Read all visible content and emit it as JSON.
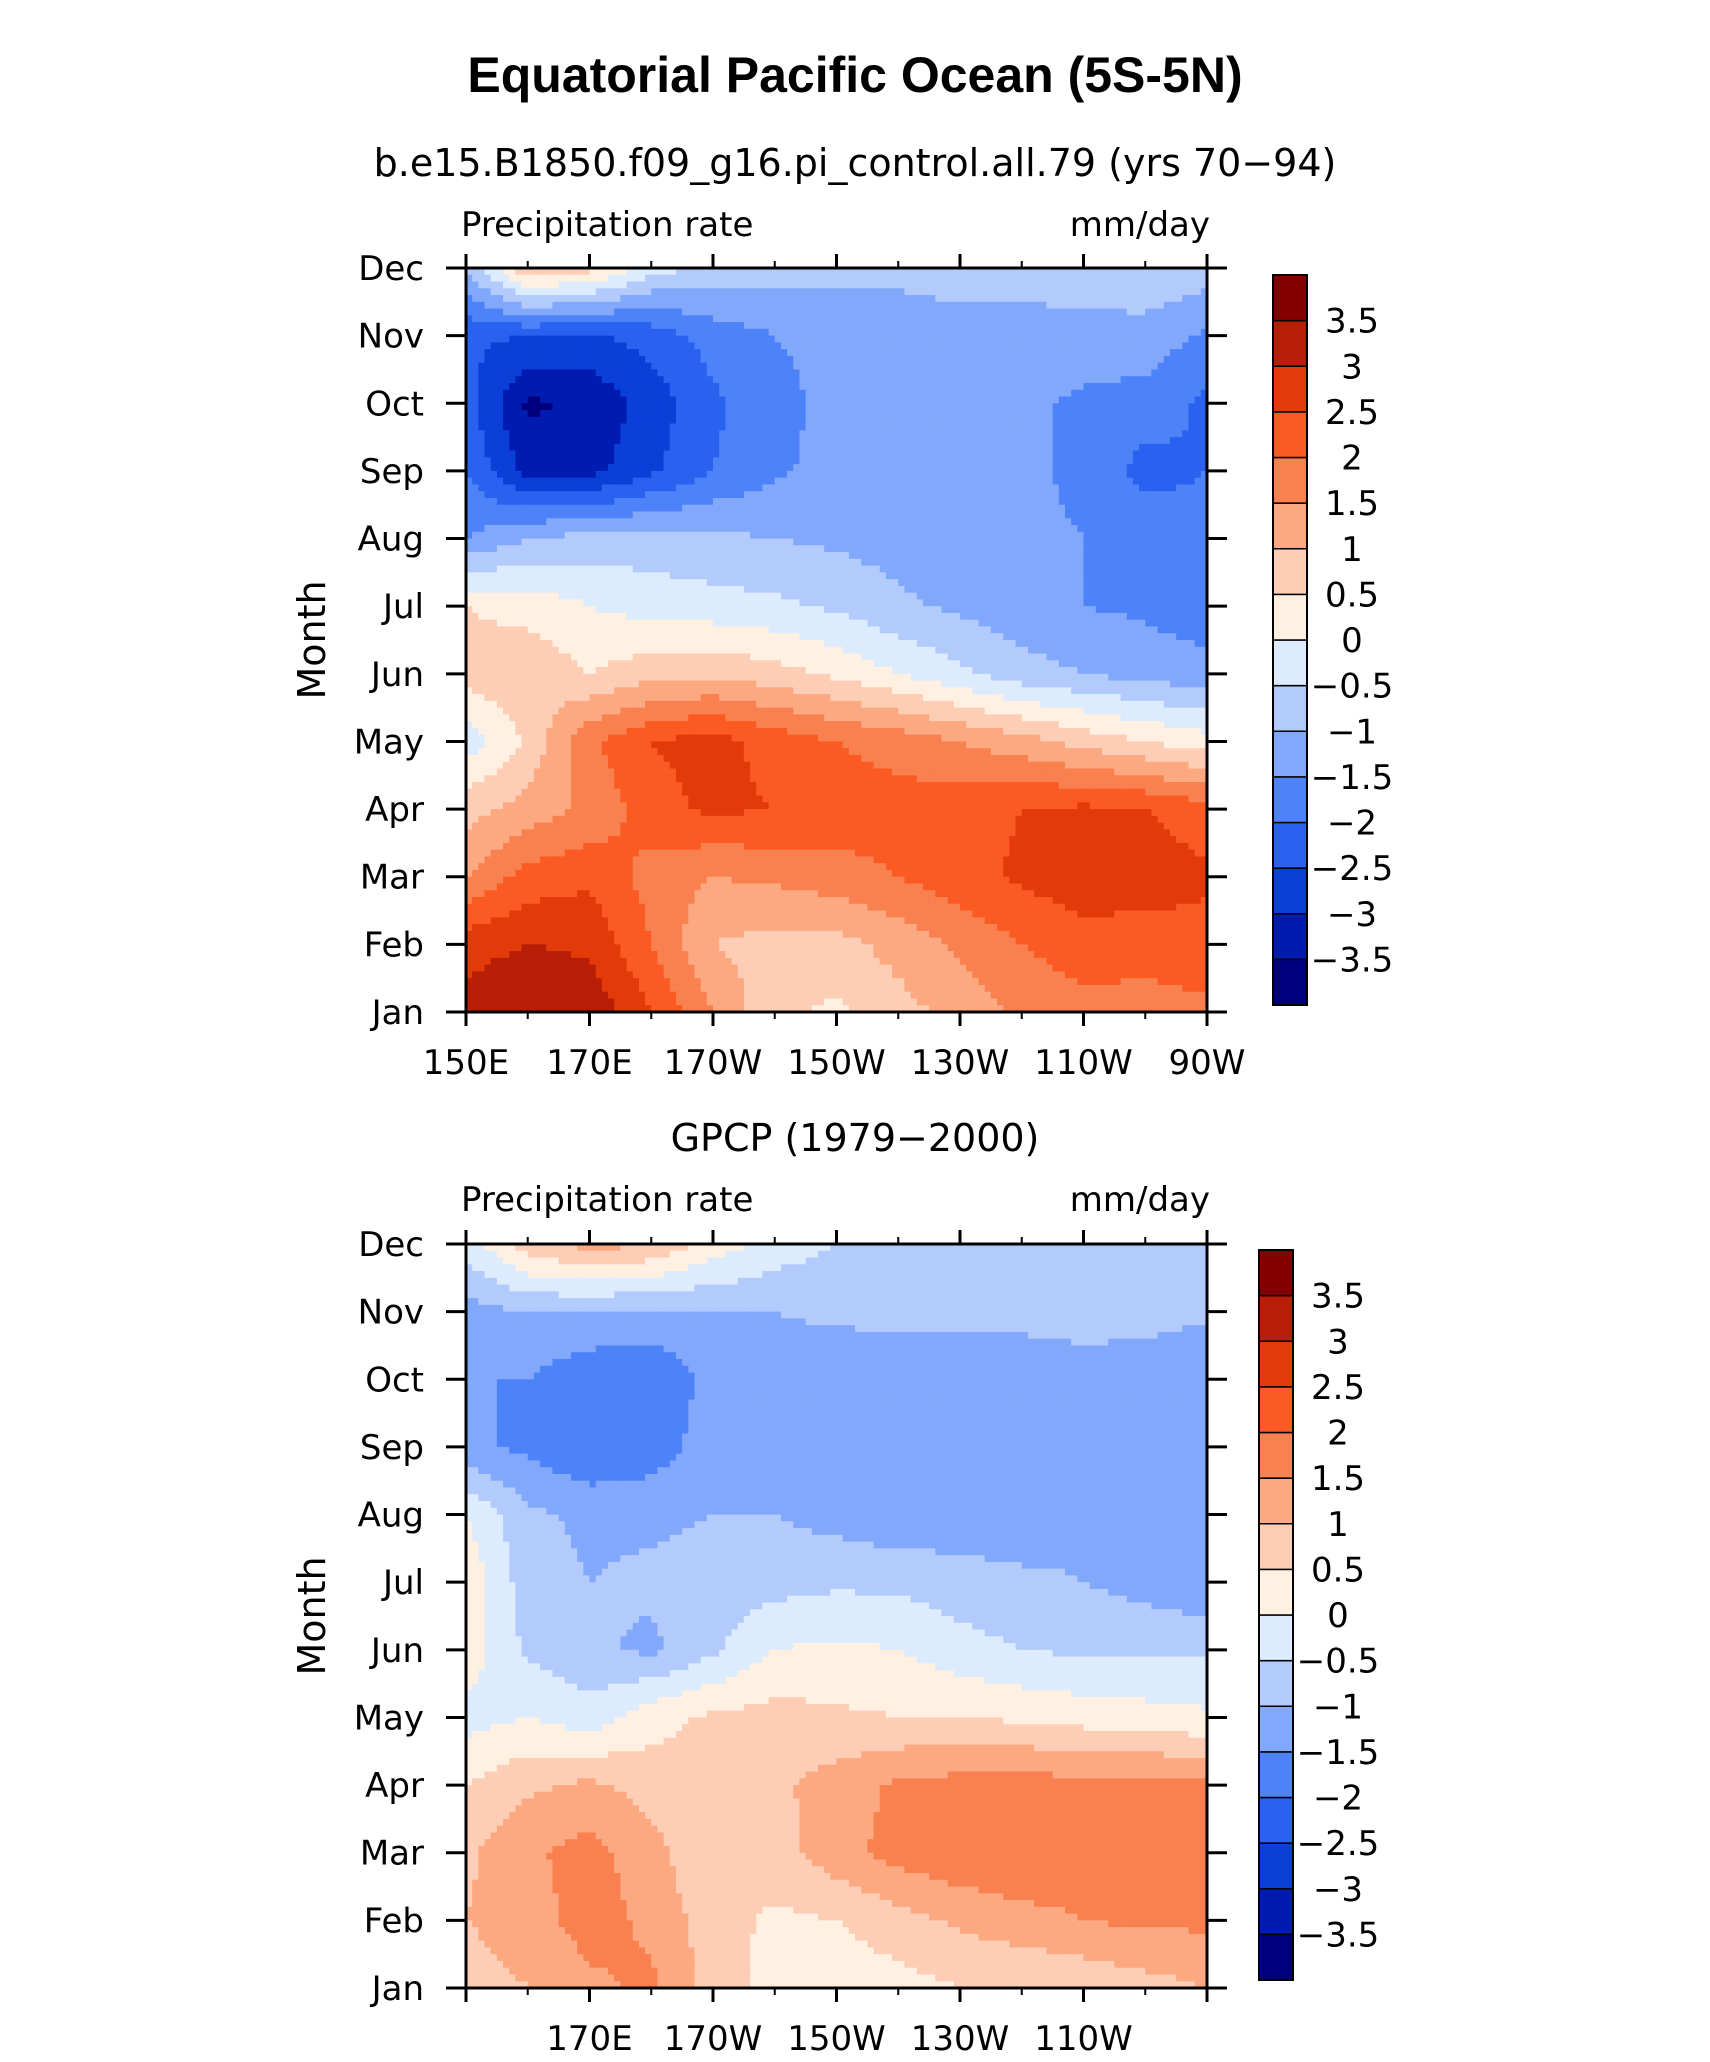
{
  "figure": {
    "title": "Equatorial Pacific Ocean (5S-5N)"
  },
  "colorbar": {
    "colors": [
      "#00007f",
      "#001cb0",
      "#0a3fd8",
      "#2a62f0",
      "#4d82f8",
      "#82a8fb",
      "#b3cbfc",
      "#dcebfd",
      "#fff0e2",
      "#fdcdb5",
      "#fca880",
      "#f9814f",
      "#fb5a22",
      "#e33a0a",
      "#b81e06",
      "#840000"
    ],
    "levels": [
      -3.5,
      -3,
      -2.5,
      -2,
      -1.5,
      -1,
      -0.5,
      0,
      0.5,
      1,
      1.5,
      2,
      2.5,
      3,
      3.5
    ],
    "labels": [
      "−3.5",
      "−3",
      "−2.5",
      "−2",
      "−1.5",
      "−1",
      "−0.5",
      "0",
      "0.5",
      "1",
      "1.5",
      "2",
      "2.5",
      "3",
      "3.5"
    ]
  },
  "panels": [
    {
      "subtitle": "b.e15.B1850.f09_g16.pi_control.all.79 (yrs 70−94)",
      "left_label": "Precipitation rate",
      "right_label": "mm/day",
      "ylabel": "Month",
      "x_tick_labels": [
        "150E",
        "170E",
        "170W",
        "150W",
        "130W",
        "110W",
        "90W"
      ]
    },
    {
      "subtitle": "GPCP (1979−2000)",
      "left_label": "Precipitation rate",
      "right_label": "mm/day",
      "ylabel": "Month",
      "x_tick_labels": [
        "",
        "170E",
        "170W",
        "150W",
        "130W",
        "110W",
        ""
      ]
    }
  ],
  "chart_data": [
    {
      "type": "heatmap",
      "title": "Equatorial Pacific Ocean (5S-5N)",
      "subtitle": "b.e15.B1850.f09_g16.pi_control.all.79 (yrs 70−94)",
      "variable": "Precipitation rate",
      "units": "mm/day",
      "ylabel": "Month",
      "x": [
        150,
        160,
        170,
        180,
        190,
        200,
        210,
        220,
        230,
        240,
        250,
        260,
        270
      ],
      "y": [
        "Jan",
        "Feb",
        "Mar",
        "Apr",
        "May",
        "Jun",
        "Jul",
        "Aug",
        "Sep",
        "Oct",
        "Nov",
        "Dec"
      ],
      "z": [
        [
          3.2,
          3.5,
          3.4,
          2.5,
          1.5,
          0.6,
          0.4,
          0.8,
          1.2,
          1.6,
          1.8,
          1.8,
          1.9
        ],
        [
          2.8,
          3.0,
          2.9,
          2.0,
          1.0,
          0.8,
          0.8,
          1.2,
          1.6,
          2.0,
          2.3,
          2.2,
          2.3
        ],
        [
          1.5,
          2.2,
          2.4,
          1.8,
          1.5,
          1.6,
          1.8,
          2.0,
          2.3,
          2.6,
          2.8,
          2.8,
          2.6
        ],
        [
          0.8,
          1.2,
          1.6,
          2.3,
          2.6,
          2.5,
          2.3,
          2.2,
          2.3,
          2.5,
          2.6,
          2.5,
          2.2
        ],
        [
          -0.3,
          0.6,
          1.9,
          2.5,
          2.7,
          2.3,
          2.0,
          1.8,
          1.5,
          1.2,
          0.8,
          0.5,
          0.2
        ],
        [
          0.7,
          0.9,
          0.5,
          0.8,
          0.9,
          0.7,
          0.4,
          0.0,
          -0.4,
          -0.8,
          -1.0,
          -1.2,
          -1.3
        ],
        [
          0.5,
          0.3,
          0.0,
          -0.2,
          -0.3,
          -0.4,
          -0.6,
          -0.9,
          -1.1,
          -1.3,
          -1.5,
          -1.6,
          -1.8
        ],
        [
          -1.5,
          -1.0,
          -0.8,
          -0.8,
          -0.9,
          -1.0,
          -1.1,
          -1.2,
          -1.3,
          -1.4,
          -1.5,
          -1.6,
          -1.8
        ],
        [
          -2.0,
          -3.2,
          -3.2,
          -2.6,
          -2.0,
          -1.6,
          -1.3,
          -1.2,
          -1.3,
          -1.4,
          -1.6,
          -2.2,
          -2.0
        ],
        [
          -2.3,
          -3.6,
          -3.4,
          -2.8,
          -2.1,
          -1.7,
          -1.3,
          -1.2,
          -1.3,
          -1.4,
          -1.6,
          -1.7,
          -2.1
        ],
        [
          -2.4,
          -2.5,
          -2.6,
          -2.3,
          -1.8,
          -1.5,
          -1.3,
          -1.2,
          -1.2,
          -1.2,
          -1.2,
          -1.2,
          -1.6
        ],
        [
          -1.0,
          1.0,
          0.7,
          -0.3,
          -0.6,
          -0.8,
          -0.9,
          -0.9,
          -0.8,
          -0.8,
          -0.7,
          -0.6,
          -0.7
        ]
      ],
      "xlim": [
        150,
        270
      ],
      "zlim": [
        -4,
        4
      ]
    },
    {
      "type": "heatmap",
      "subtitle": "GPCP (1979−2000)",
      "variable": "Precipitation rate",
      "units": "mm/day",
      "ylabel": "Month",
      "x": [
        150,
        160,
        170,
        180,
        190,
        200,
        210,
        220,
        230,
        240,
        250,
        260,
        270
      ],
      "y": [
        "Jan",
        "Feb",
        "Mar",
        "Apr",
        "May",
        "Jun",
        "Jul",
        "Aug",
        "Sep",
        "Oct",
        "Nov",
        "Dec"
      ],
      "z": [
        [
          0.7,
          1.0,
          1.4,
          1.6,
          0.8,
          0.3,
          0.2,
          0.3,
          0.5,
          0.5,
          0.6,
          0.8,
          1.0
        ],
        [
          1.0,
          1.3,
          1.7,
          1.4,
          0.7,
          0.4,
          0.5,
          0.8,
          1.1,
          1.3,
          1.5,
          1.6,
          1.6
        ],
        [
          0.9,
          1.4,
          1.7,
          1.2,
          0.5,
          0.8,
          1.3,
          1.7,
          1.9,
          2.0,
          1.8,
          1.9,
          1.8
        ],
        [
          0.5,
          0.9,
          1.1,
          0.8,
          0.7,
          0.9,
          1.2,
          1.6,
          1.7,
          1.8,
          1.6,
          1.7,
          1.6
        ],
        [
          -0.2,
          0.0,
          -0.3,
          0.3,
          0.6,
          0.7,
          0.6,
          0.5,
          0.5,
          0.4,
          0.3,
          0.2,
          0.1
        ],
        [
          0.3,
          -0.6,
          -0.9,
          -1.1,
          -0.6,
          0.0,
          0.1,
          0.0,
          -0.3,
          -0.5,
          -0.6,
          -0.6,
          -0.6
        ],
        [
          0.4,
          -0.8,
          -1.0,
          -0.9,
          -0.8,
          -0.7,
          -0.6,
          -0.6,
          -0.8,
          -0.9,
          -1.0,
          -1.2,
          -1.4
        ],
        [
          0.0,
          -0.9,
          -1.1,
          -1.1,
          -1.0,
          -1.0,
          -1.2,
          -1.4,
          -1.3,
          -1.3,
          -1.1,
          -1.2,
          -1.4
        ],
        [
          -1.4,
          -1.6,
          -2.0,
          -1.8,
          -1.2,
          -1.2,
          -1.4,
          -1.5,
          -1.5,
          -1.5,
          -1.1,
          -1.3,
          -1.5
        ],
        [
          -1.5,
          -1.5,
          -1.9,
          -2.0,
          -1.3,
          -1.2,
          -1.4,
          -1.4,
          -1.5,
          -1.4,
          -1.2,
          -1.3,
          -1.5
        ],
        [
          -1.2,
          -1.0,
          -1.0,
          -1.1,
          -1.0,
          -1.0,
          -0.9,
          -0.8,
          -0.8,
          -0.8,
          -0.8,
          -0.8,
          -0.9
        ],
        [
          -0.3,
          0.8,
          1.2,
          1.0,
          0.3,
          -0.2,
          -0.5,
          -0.6,
          -0.7,
          -0.7,
          -0.7,
          -0.7,
          -0.6
        ]
      ],
      "xlim": [
        150,
        270
      ],
      "zlim": [
        -4,
        4
      ]
    }
  ]
}
